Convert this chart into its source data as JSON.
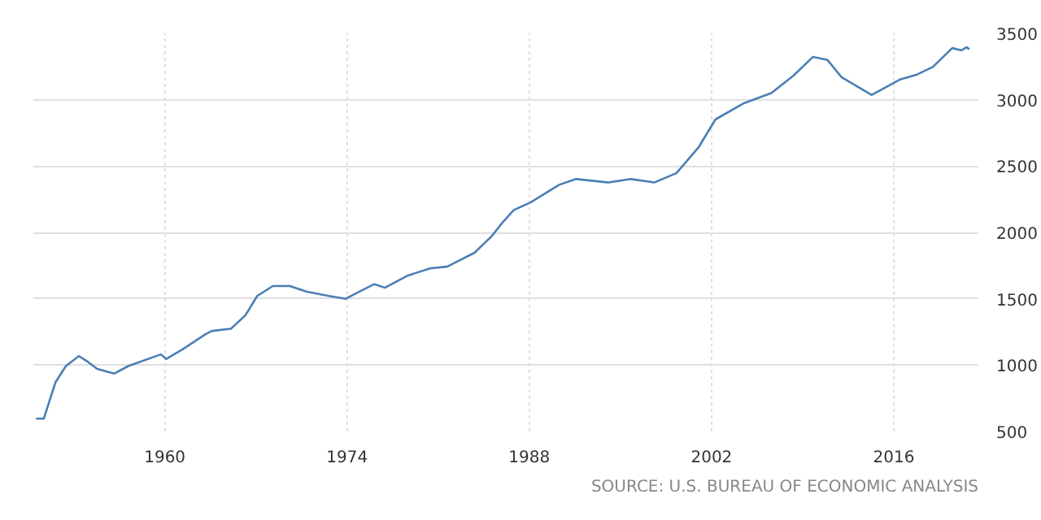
{
  "chart_data": {
    "type": "line",
    "color": "#4a7fb5",
    "grid": true,
    "x": [
      1950.1,
      1950.7,
      1951.6,
      1952.4,
      1953.4,
      1954.1,
      1954.8,
      1956.1,
      1957.2,
      1959.7,
      1960.1,
      1961.4,
      1963.1,
      1963.6,
      1965.1,
      1966.2,
      1967.1,
      1968.3,
      1969.6,
      1970.9,
      1972.6,
      1973.9,
      1975.2,
      1976.1,
      1976.9,
      1978.7,
      1980.4,
      1981.7,
      1983.8,
      1985.1,
      1986.0,
      1986.8,
      1988.1,
      1990.3,
      1991.6,
      1994.1,
      1995.8,
      1997.6,
      1999.3,
      2001.0,
      2002.3,
      2004.5,
      2006.6,
      2008.3,
      2009.8,
      2010.9,
      2012.0,
      2014.3,
      2016.5,
      2017.8,
      2019.0,
      2020.5,
      2021.2,
      2021.6,
      2021.8
    ],
    "values": [
      596,
      596,
      870,
      993,
      1068,
      1024,
      971,
      936,
      993,
      1081,
      1046,
      1121,
      1231,
      1257,
      1275,
      1376,
      1521,
      1596,
      1596,
      1553,
      1521,
      1500,
      1566,
      1610,
      1583,
      1676,
      1729,
      1742,
      1847,
      1970,
      2081,
      2168,
      2226,
      2359,
      2402,
      2376,
      2402,
      2376,
      2446,
      2640,
      2851,
      2974,
      3050,
      3182,
      3323,
      3300,
      3168,
      3036,
      3153,
      3190,
      3247,
      3389,
      3372,
      3395,
      3380
    ],
    "xlim": [
      1949.9,
      2022.5
    ],
    "xticks": [
      1960,
      1974,
      1988,
      2002,
      2016
    ],
    "ylim": [
      500,
      3500
    ],
    "yticks": [
      500,
      1000,
      1500,
      2000,
      2500,
      3000,
      3500
    ],
    "annotations": [
      "SOURCE: U.S. BUREAU OF ECONOMIC ANALYSIS"
    ]
  }
}
